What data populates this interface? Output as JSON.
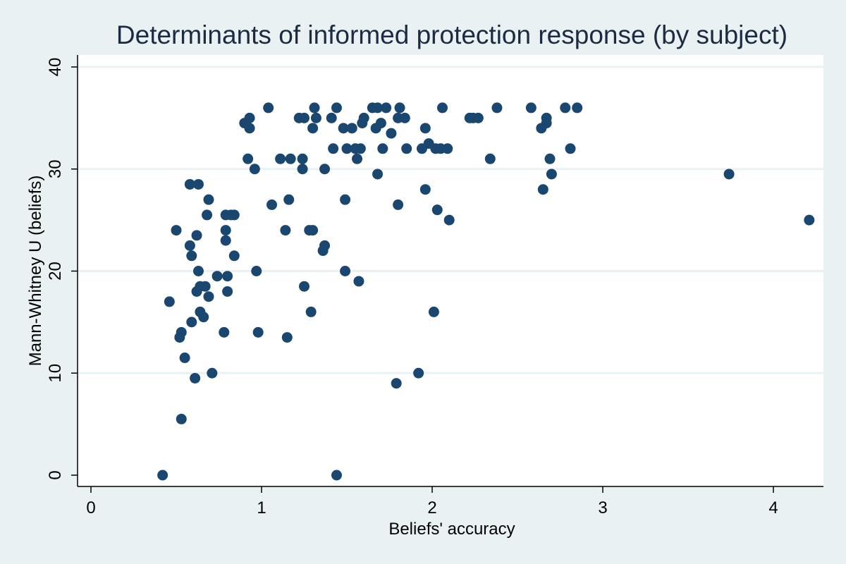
{
  "colors": {
    "background": "#eaf1f3",
    "plot_background": "#ffffff",
    "marker": "#1a476f",
    "gridline": "#eaf1f3",
    "axis": "#000000",
    "title": "#1c2b44"
  },
  "chart_data": {
    "type": "scatter",
    "title": "Determinants of informed protection response (by subject)",
    "xlabel": "Beliefs' accuracy",
    "ylabel": "Mann-Whitney U (beliefs)",
    "xlim": [
      -0.1,
      4.3
    ],
    "ylim": [
      -1,
      41
    ],
    "xticks": [
      0,
      1,
      2,
      3,
      4
    ],
    "yticks": [
      0,
      10,
      20,
      30,
      40
    ],
    "xtick_labels": [
      "0",
      "1",
      "2",
      "3",
      "4"
    ],
    "ytick_labels": [
      "0",
      "10",
      "20",
      "30",
      "40"
    ],
    "grid": "horizontal",
    "legend": "none",
    "points": [
      [
        0.42,
        0
      ],
      [
        0.46,
        17
      ],
      [
        0.5,
        24
      ],
      [
        0.52,
        13.5
      ],
      [
        0.53,
        14
      ],
      [
        0.53,
        5.5
      ],
      [
        0.55,
        11.5
      ],
      [
        0.58,
        28.5
      ],
      [
        0.58,
        22.5
      ],
      [
        0.59,
        21.5
      ],
      [
        0.59,
        15
      ],
      [
        0.61,
        9.5
      ],
      [
        0.62,
        18
      ],
      [
        0.62,
        23.5
      ],
      [
        0.63,
        28.5
      ],
      [
        0.63,
        20
      ],
      [
        0.64,
        16
      ],
      [
        0.64,
        18.5
      ],
      [
        0.66,
        15.5
      ],
      [
        0.67,
        18.5
      ],
      [
        0.68,
        25.5
      ],
      [
        0.69,
        17.5
      ],
      [
        0.69,
        27
      ],
      [
        0.71,
        10
      ],
      [
        0.74,
        19.5
      ],
      [
        0.78,
        14
      ],
      [
        0.79,
        25.5
      ],
      [
        0.79,
        24
      ],
      [
        0.79,
        23
      ],
      [
        0.8,
        18
      ],
      [
        0.8,
        19.5
      ],
      [
        0.82,
        25.5
      ],
      [
        0.84,
        25.5
      ],
      [
        0.84,
        21.5
      ],
      [
        0.9,
        34.5
      ],
      [
        0.92,
        31
      ],
      [
        0.93,
        34
      ],
      [
        0.93,
        35
      ],
      [
        0.96,
        30
      ],
      [
        0.97,
        20
      ],
      [
        0.98,
        14
      ],
      [
        1.04,
        36
      ],
      [
        1.06,
        26.5
      ],
      [
        1.11,
        31
      ],
      [
        1.14,
        24
      ],
      [
        1.15,
        13.5
      ],
      [
        1.16,
        27
      ],
      [
        1.17,
        31
      ],
      [
        1.22,
        35
      ],
      [
        1.24,
        31
      ],
      [
        1.24,
        30
      ],
      [
        1.25,
        18.5
      ],
      [
        1.25,
        35
      ],
      [
        1.28,
        24
      ],
      [
        1.3,
        24
      ],
      [
        1.29,
        16
      ],
      [
        1.3,
        34
      ],
      [
        1.31,
        36
      ],
      [
        1.32,
        35
      ],
      [
        1.36,
        22
      ],
      [
        1.37,
        22.5
      ],
      [
        1.37,
        30
      ],
      [
        1.41,
        35
      ],
      [
        1.42,
        32
      ],
      [
        1.44,
        0
      ],
      [
        1.44,
        36
      ],
      [
        1.48,
        34
      ],
      [
        1.49,
        20
      ],
      [
        1.49,
        27
      ],
      [
        1.5,
        32
      ],
      [
        1.53,
        34
      ],
      [
        1.55,
        32
      ],
      [
        1.56,
        31
      ],
      [
        1.57,
        19
      ],
      [
        1.58,
        32
      ],
      [
        1.59,
        34.5
      ],
      [
        1.6,
        35
      ],
      [
        1.65,
        36
      ],
      [
        1.67,
        34
      ],
      [
        1.68,
        29.5
      ],
      [
        1.68,
        36
      ],
      [
        1.7,
        34.5
      ],
      [
        1.71,
        32
      ],
      [
        1.73,
        36
      ],
      [
        1.76,
        33.5
      ],
      [
        1.79,
        9
      ],
      [
        1.8,
        26.5
      ],
      [
        1.8,
        35
      ],
      [
        1.81,
        36
      ],
      [
        1.84,
        35
      ],
      [
        1.85,
        32
      ],
      [
        1.92,
        10
      ],
      [
        1.94,
        32
      ],
      [
        1.96,
        34
      ],
      [
        1.96,
        28
      ],
      [
        1.98,
        32.5
      ],
      [
        2.01,
        16
      ],
      [
        2.02,
        32
      ],
      [
        2.03,
        26
      ],
      [
        2.05,
        32
      ],
      [
        2.06,
        36
      ],
      [
        2.09,
        32
      ],
      [
        2.1,
        25
      ],
      [
        2.22,
        35
      ],
      [
        2.24,
        35
      ],
      [
        2.27,
        35
      ],
      [
        2.34,
        31
      ],
      [
        2.38,
        36
      ],
      [
        2.58,
        36
      ],
      [
        2.64,
        34
      ],
      [
        2.65,
        28
      ],
      [
        2.67,
        35
      ],
      [
        2.67,
        34.5
      ],
      [
        2.69,
        31
      ],
      [
        2.7,
        29.5
      ],
      [
        2.78,
        36
      ],
      [
        2.81,
        32
      ],
      [
        2.85,
        36
      ],
      [
        3.74,
        29.5
      ],
      [
        4.21,
        25
      ]
    ]
  }
}
